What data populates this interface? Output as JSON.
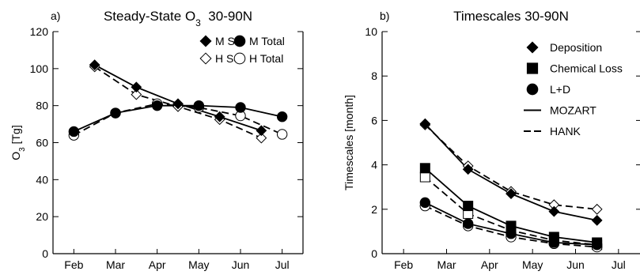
{
  "chart_data": [
    {
      "type": "line",
      "panel_label": "a)",
      "title": "Steady-State O",
      "title_sub": "3",
      "title_suffix": "  30-90N",
      "ylabel": "O",
      "ylabel_sub": "3",
      "ylabel_suffix": " [Tg]",
      "xlabel": "",
      "categories": [
        "Feb",
        "Mar",
        "Apr",
        "May",
        "Jun",
        "Jul"
      ],
      "xlim": [
        0.5,
        6.5
      ],
      "ylim": [
        0,
        120
      ],
      "yticks": [
        0,
        20,
        40,
        60,
        80,
        100,
        120
      ],
      "legend_position": "top-right",
      "grid": false,
      "series": [
        {
          "name": "M SS",
          "marker": "diamond",
          "fill": "filled",
          "line": "solid",
          "x": [
            1.5,
            2.5,
            3.5,
            4.5,
            5.5
          ],
          "y": [
            102,
            90,
            81,
            74,
            66.5
          ]
        },
        {
          "name": "M Total",
          "marker": "circle",
          "fill": "filled",
          "line": "solid",
          "x": [
            1,
            2,
            3,
            4,
            5,
            6
          ],
          "y": [
            66,
            76,
            80,
            80,
            79,
            74
          ]
        },
        {
          "name": "H SS",
          "marker": "diamond",
          "fill": "open",
          "line": "dashed",
          "x": [
            1.5,
            2.5,
            3.5,
            4.5,
            5.5
          ],
          "y": [
            101,
            86,
            79.5,
            72.5,
            62.5
          ]
        },
        {
          "name": "H Total",
          "marker": "circle",
          "fill": "open",
          "line": "dashed",
          "x": [
            1,
            2,
            3,
            4,
            5,
            6
          ],
          "y": [
            64,
            76,
            81,
            79,
            74.5,
            64.5
          ]
        }
      ]
    },
    {
      "type": "line",
      "panel_label": "b)",
      "title": "Timescales 30-90N",
      "ylabel": "Timescales [month]",
      "xlabel": "",
      "categories": [
        "Feb",
        "Mar",
        "Apr",
        "May",
        "Jun",
        "Jul"
      ],
      "xlim": [
        0.5,
        6.5
      ],
      "ylim": [
        0,
        10
      ],
      "yticks": [
        0,
        2,
        4,
        6,
        8,
        10
      ],
      "legend_position": "top-right",
      "grid": false,
      "legend": [
        {
          "label": "Deposition",
          "kind": "marker",
          "marker": "diamond"
        },
        {
          "label": "Chemical Loss",
          "kind": "marker",
          "marker": "square"
        },
        {
          "label": "L+D",
          "kind": "marker",
          "marker": "circle"
        },
        {
          "label": "MOZART",
          "kind": "line",
          "line": "solid"
        },
        {
          "label": "HANK",
          "kind": "line",
          "line": "dashed"
        }
      ],
      "series": [
        {
          "name": "Deposition",
          "model": "MOZART",
          "marker": "diamond",
          "fill": "filled",
          "line": "solid",
          "x": [
            1.5,
            2.5,
            3.5,
            4.5,
            5.5
          ],
          "y": [
            5.85,
            3.8,
            2.7,
            1.9,
            1.5
          ]
        },
        {
          "name": "Deposition",
          "model": "HANK",
          "marker": "diamond",
          "fill": "open",
          "line": "dashed",
          "x": [
            1.5,
            2.5,
            3.5,
            4.5,
            5.5
          ],
          "y": [
            5.8,
            3.95,
            2.8,
            2.2,
            2.0
          ]
        },
        {
          "name": "Chemical Loss",
          "model": "MOZART",
          "marker": "square",
          "fill": "filled",
          "line": "solid",
          "x": [
            1.5,
            2.5,
            3.5,
            4.5,
            5.5
          ],
          "y": [
            3.85,
            2.15,
            1.25,
            0.75,
            0.5
          ]
        },
        {
          "name": "Chemical Loss",
          "model": "HANK",
          "marker": "square",
          "fill": "open",
          "line": "dashed",
          "x": [
            1.5,
            2.5,
            3.5,
            4.5,
            5.5
          ],
          "y": [
            3.45,
            1.8,
            1.05,
            0.6,
            0.4
          ]
        },
        {
          "name": "L+D",
          "model": "MOZART",
          "marker": "circle",
          "fill": "filled",
          "line": "solid",
          "x": [
            1.5,
            2.5,
            3.5,
            4.5,
            5.5
          ],
          "y": [
            2.3,
            1.35,
            0.9,
            0.5,
            0.4
          ]
        },
        {
          "name": "L+D",
          "model": "HANK",
          "marker": "circle",
          "fill": "open",
          "line": "dashed",
          "x": [
            1.5,
            2.5,
            3.5,
            4.5,
            5.5
          ],
          "y": [
            2.15,
            1.25,
            0.75,
            0.45,
            0.3
          ]
        }
      ]
    }
  ]
}
